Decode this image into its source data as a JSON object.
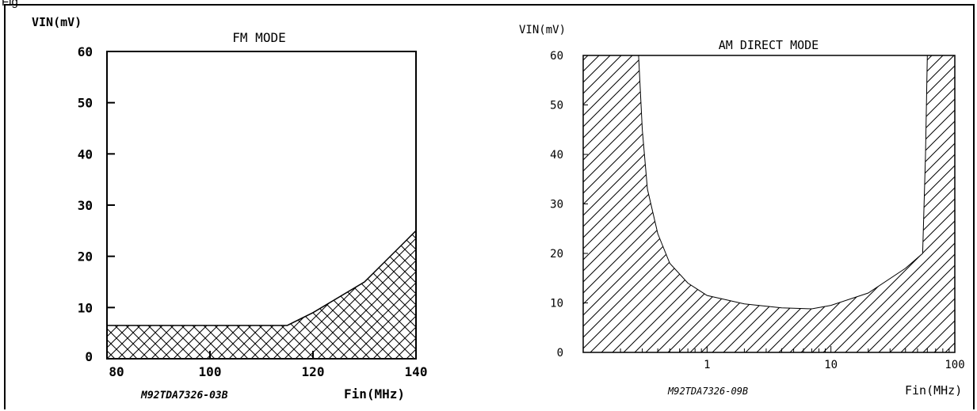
{
  "figure": {
    "caption": "Fig"
  },
  "chart_data": [
    {
      "type": "area",
      "title": "FM MODE",
      "ylabel": "VIN(mV)",
      "xlabel": "Fin(MHz)",
      "code": "M92TDA7326-03B",
      "xlim": [
        80,
        140
      ],
      "ylim": [
        0,
        60
      ],
      "x_ticks": [
        "80",
        "100",
        "120",
        "140"
      ],
      "y_ticks": [
        "0",
        "10",
        "20",
        "30",
        "40",
        "50",
        "60"
      ],
      "x_scale": "linear",
      "grid": false,
      "fill_pattern": "crosshatch",
      "boundary": {
        "x": [
          80,
          115,
          120,
          130,
          140
        ],
        "y": [
          6.5,
          6.5,
          9,
          15,
          25
        ]
      }
    },
    {
      "type": "area",
      "title": "AM DIRECT MODE",
      "ylabel": "VIN(mV)",
      "xlabel": "Fin(MHz)",
      "code": "M92TDA7326-09B",
      "xlim": [
        0.1,
        100
      ],
      "ylim": [
        0,
        60
      ],
      "x_ticks": [
        "1",
        "10",
        "100"
      ],
      "y_ticks": [
        "0",
        "10",
        "20",
        "30",
        "40",
        "50",
        "60"
      ],
      "x_scale": "log",
      "grid": false,
      "fill_pattern": "diagonal-hatch",
      "boundary": {
        "x": [
          0.28,
          0.3,
          0.33,
          0.4,
          0.5,
          0.7,
          1.0,
          2.0,
          4.0,
          7.0,
          10,
          20,
          40,
          55,
          58,
          60
        ],
        "y": [
          60,
          45,
          33,
          24,
          18,
          14,
          11.5,
          9.8,
          9.0,
          8.8,
          9.5,
          12,
          17,
          20,
          40,
          60
        ]
      }
    }
  ]
}
